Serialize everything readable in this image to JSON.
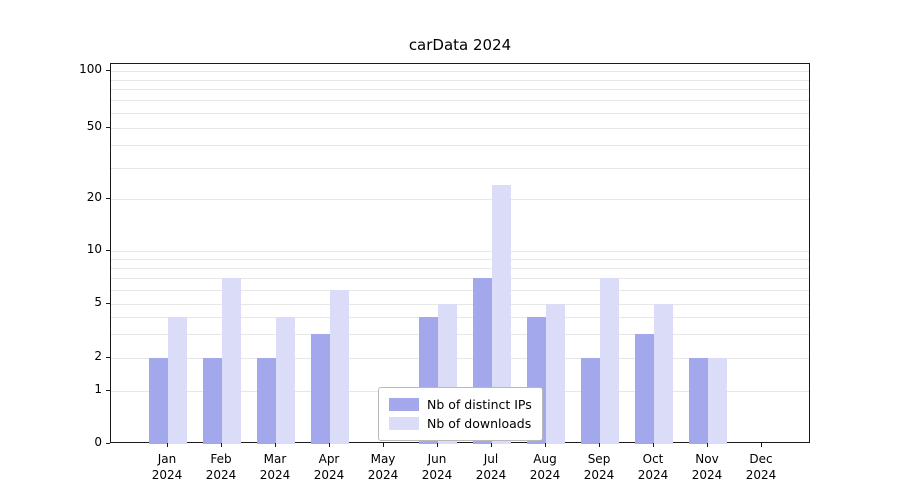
{
  "chart_data": {
    "type": "bar",
    "title": "carData 2024",
    "categories": [
      "Jan",
      "Feb",
      "Mar",
      "Apr",
      "May",
      "Jun",
      "Jul",
      "Aug",
      "Sep",
      "Oct",
      "Nov",
      "Dec"
    ],
    "year": "2024",
    "series": [
      {
        "name": "Nb of distinct IPs",
        "color": "#a3a8ec",
        "values": [
          2,
          2,
          2,
          3,
          0,
          4,
          7,
          4,
          2,
          3,
          2,
          0
        ]
      },
      {
        "name": "Nb of downloads",
        "color": "#dadcf8",
        "values": [
          4,
          7,
          4,
          6,
          0,
          5,
          24,
          5,
          7,
          5,
          2,
          0
        ]
      }
    ],
    "yticks": [
      100,
      50,
      20,
      10,
      5,
      2,
      1,
      0
    ],
    "ylim": [
      0,
      100
    ],
    "yscale": "symlog",
    "grid": true,
    "gridline_values": [
      1,
      2,
      3,
      4,
      5,
      6,
      7,
      8,
      9,
      10,
      20,
      30,
      40,
      50,
      60,
      70,
      80,
      90,
      100
    ],
    "legend_position": "bottom-center",
    "colors": {
      "grid": "#e7e7e7",
      "axis": "#1a1a1a",
      "background": "#ffffff"
    }
  }
}
